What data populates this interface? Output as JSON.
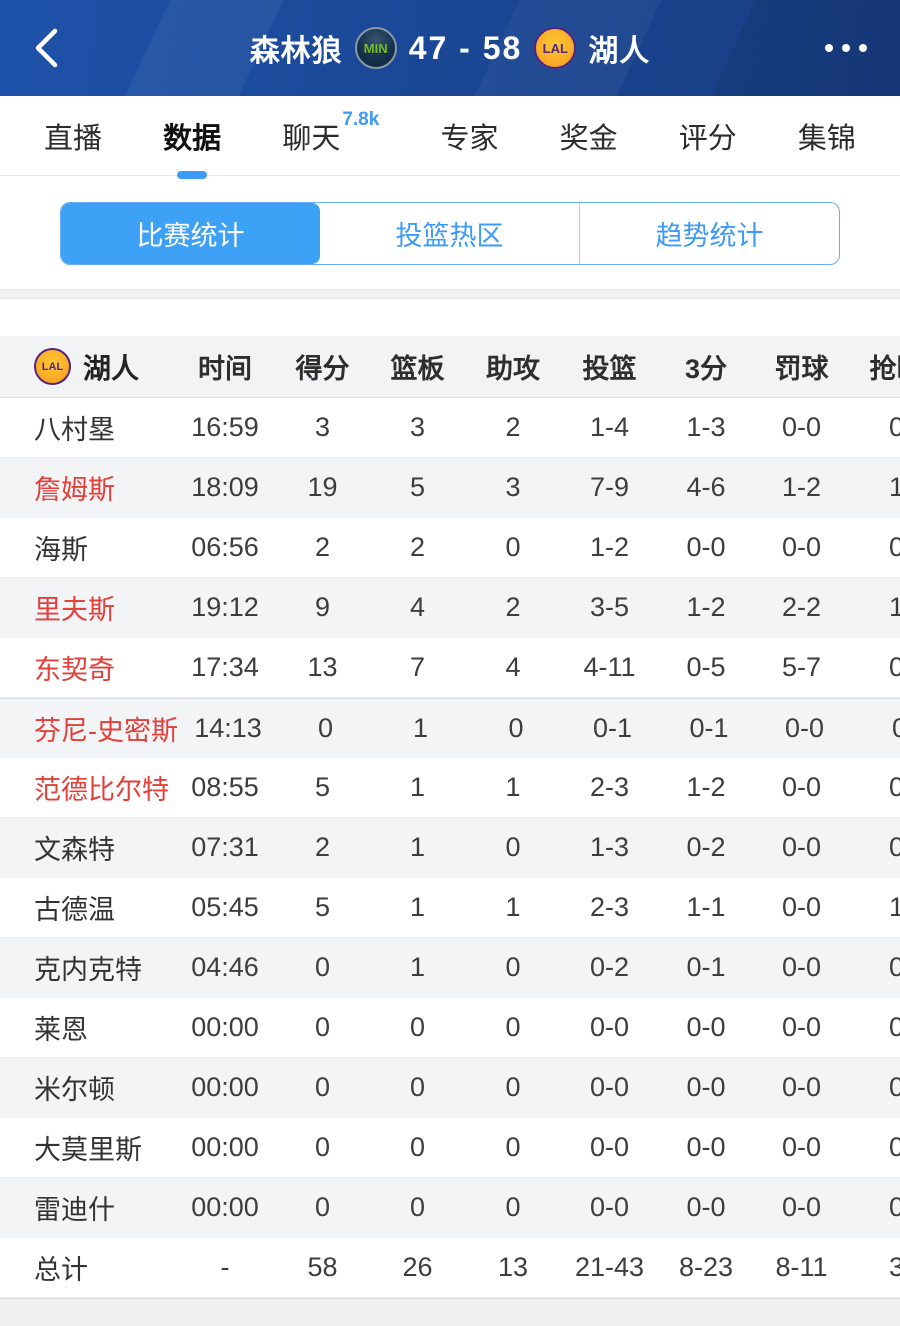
{
  "appbar": {
    "team_left": "森林狼",
    "team_left_logo_text": "MIN",
    "score": "47 - 58",
    "team_right_logo_text": "LAL",
    "team_right": "湖人"
  },
  "tabs": [
    {
      "label": "直播",
      "active": false,
      "badge": ""
    },
    {
      "label": "数据",
      "active": true,
      "badge": ""
    },
    {
      "label": "聊天",
      "active": false,
      "badge": "7.8k"
    },
    {
      "label": "专家",
      "active": false,
      "badge": ""
    },
    {
      "label": "奖金",
      "active": false,
      "badge": ""
    },
    {
      "label": "评分",
      "active": false,
      "badge": ""
    },
    {
      "label": "集锦",
      "active": false,
      "badge": ""
    }
  ],
  "segments": [
    {
      "label": "比赛统计",
      "active": true
    },
    {
      "label": "投篮热区",
      "active": false
    },
    {
      "label": "趋势统计",
      "active": false
    }
  ],
  "table": {
    "team_label": "湖人",
    "team_logo_text": "LAL",
    "columns": [
      "时间",
      "得分",
      "篮板",
      "助攻",
      "投篮",
      "3分",
      "罚球",
      "抢断"
    ],
    "rows": [
      {
        "name": "八村塁",
        "red": false,
        "divider_before": false,
        "values": [
          "16:59",
          "3",
          "3",
          "2",
          "1-4",
          "1-3",
          "0-0",
          "0"
        ]
      },
      {
        "name": "詹姆斯",
        "red": true,
        "divider_before": false,
        "values": [
          "18:09",
          "19",
          "5",
          "3",
          "7-9",
          "4-6",
          "1-2",
          "1"
        ]
      },
      {
        "name": "海斯",
        "red": false,
        "divider_before": false,
        "values": [
          "06:56",
          "2",
          "2",
          "0",
          "1-2",
          "0-0",
          "0-0",
          "0"
        ]
      },
      {
        "name": "里夫斯",
        "red": true,
        "divider_before": false,
        "values": [
          "19:12",
          "9",
          "4",
          "2",
          "3-5",
          "1-2",
          "2-2",
          "1"
        ]
      },
      {
        "name": "东契奇",
        "red": true,
        "divider_before": false,
        "values": [
          "17:34",
          "13",
          "7",
          "4",
          "4-11",
          "0-5",
          "5-7",
          "0"
        ]
      },
      {
        "name": "芬尼-史密斯",
        "red": true,
        "divider_before": true,
        "values": [
          "14:13",
          "0",
          "1",
          "0",
          "0-1",
          "0-1",
          "0-0",
          "0"
        ]
      },
      {
        "name": "范德比尔特",
        "red": true,
        "divider_before": false,
        "values": [
          "08:55",
          "5",
          "1",
          "1",
          "2-3",
          "1-2",
          "0-0",
          "0"
        ]
      },
      {
        "name": "文森特",
        "red": false,
        "divider_before": false,
        "values": [
          "07:31",
          "2",
          "1",
          "0",
          "1-3",
          "0-2",
          "0-0",
          "0"
        ]
      },
      {
        "name": "古德温",
        "red": false,
        "divider_before": false,
        "values": [
          "05:45",
          "5",
          "1",
          "1",
          "2-3",
          "1-1",
          "0-0",
          "1"
        ]
      },
      {
        "name": "克内克特",
        "red": false,
        "divider_before": false,
        "values": [
          "04:46",
          "0",
          "1",
          "0",
          "0-2",
          "0-1",
          "0-0",
          "0"
        ]
      },
      {
        "name": "莱恩",
        "red": false,
        "divider_before": false,
        "values": [
          "00:00",
          "0",
          "0",
          "0",
          "0-0",
          "0-0",
          "0-0",
          "0"
        ]
      },
      {
        "name": "米尔顿",
        "red": false,
        "divider_before": false,
        "values": [
          "00:00",
          "0",
          "0",
          "0",
          "0-0",
          "0-0",
          "0-0",
          "0"
        ]
      },
      {
        "name": "大莫里斯",
        "red": false,
        "divider_before": false,
        "values": [
          "00:00",
          "0",
          "0",
          "0",
          "0-0",
          "0-0",
          "0-0",
          "0"
        ]
      },
      {
        "name": "雷迪什",
        "red": false,
        "divider_before": false,
        "values": [
          "00:00",
          "0",
          "0",
          "0",
          "0-0",
          "0-0",
          "0-0",
          "0"
        ]
      }
    ],
    "totals": {
      "name": "总计",
      "values": [
        "-",
        "58",
        "26",
        "13",
        "21-43",
        "8-23",
        "8-11",
        "3"
      ]
    }
  },
  "colors": {
    "accent_blue": "#3d9bf8",
    "appbar_blue": "#1b4897",
    "active_player_red": "#e2403b",
    "row_alt_gray": "#f3f4f6",
    "lal_gold": "#f9a825",
    "lal_purple": "#552583",
    "min_navy": "#15314e",
    "min_green": "#78be20"
  }
}
